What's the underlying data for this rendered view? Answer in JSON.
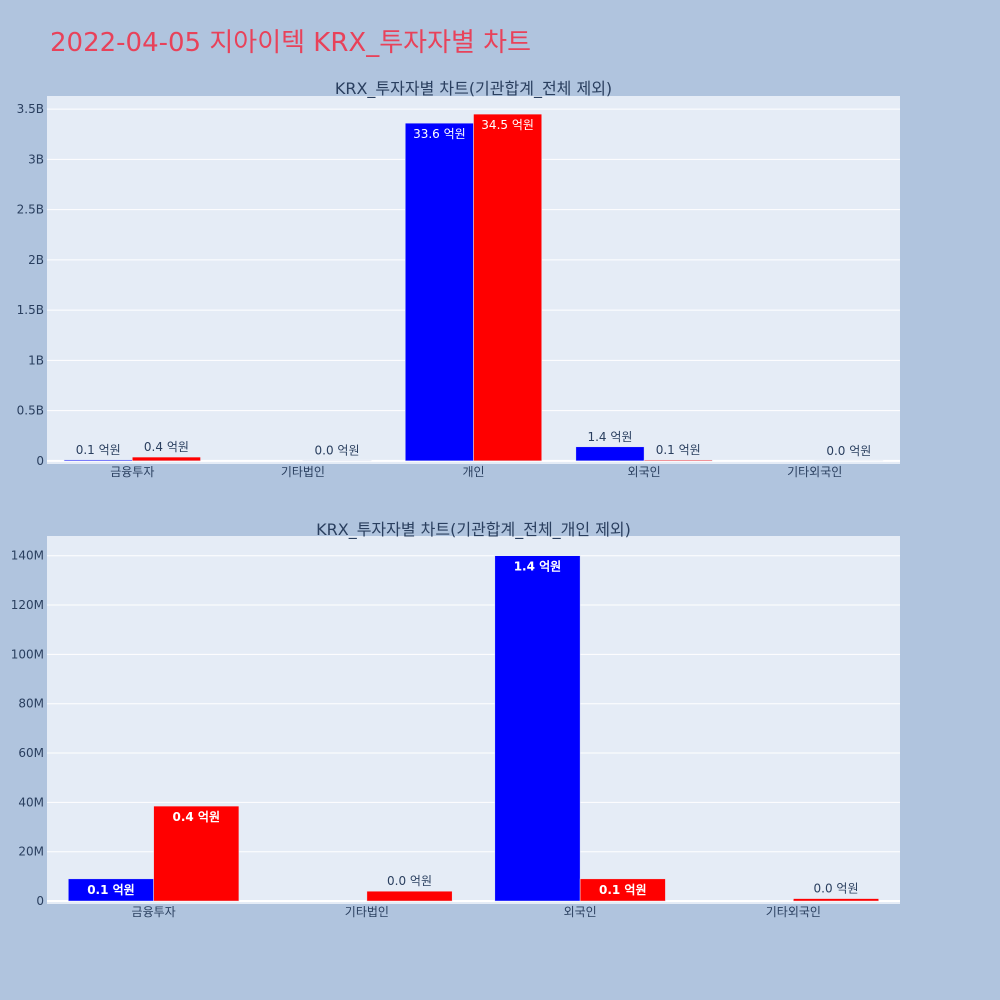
{
  "page_title": "2022-04-05 지아이텍 KRX_투자자별 차트",
  "chart_data": [
    {
      "type": "bar",
      "title": "KRX_투자자별 차트(기관합계_전체 제외)",
      "categories": [
        "금융투자",
        "기타법인",
        "개인",
        "외국인",
        "기타외국인"
      ],
      "series": [
        {
          "color": "#0000ff",
          "values": [
            10000000,
            0,
            3360000000,
            140000000,
            0
          ],
          "labels": [
            "0.1 억원",
            "",
            "33.6 억원",
            "1.4 억원",
            ""
          ]
        },
        {
          "color": "#ff0000",
          "values": [
            38000000,
            4000000,
            3450000000,
            9000000,
            1000000
          ],
          "labels": [
            "0.4 억원",
            "0.0 억원",
            "34.5 억원",
            "0.1 억원",
            "0.0 억원"
          ]
        }
      ],
      "yticks": [
        {
          "v": 0,
          "t": "0"
        },
        {
          "v": 500000000,
          "t": "0.5B"
        },
        {
          "v": 1000000000,
          "t": "1B"
        },
        {
          "v": 1500000000,
          "t": "1.5B"
        },
        {
          "v": 2000000000,
          "t": "2B"
        },
        {
          "v": 2500000000,
          "t": "2.5B"
        },
        {
          "v": 3000000000,
          "t": "3B"
        },
        {
          "v": 3500000000,
          "t": "3.5B"
        }
      ],
      "ylim": [
        -31000000,
        3630000000
      ],
      "grid": true
    },
    {
      "type": "bar",
      "title": "KRX_투자자별 차트(기관합계_전체_개인 제외)",
      "categories": [
        "금융투자",
        "기타법인",
        "외국인",
        "기타외국인"
      ],
      "series": [
        {
          "color": "#0000ff",
          "values": [
            9000000,
            0,
            140000000,
            0
          ],
          "labels": [
            "0.1 억원",
            "",
            "1.4 억원",
            ""
          ]
        },
        {
          "color": "#ff0000",
          "values": [
            38500000,
            4000000,
            9000000,
            1000000
          ],
          "labels": [
            "0.4 억원",
            "0.0 억원",
            "0.1 억원",
            "0.0 억원"
          ]
        }
      ],
      "yticks": [
        {
          "v": 0,
          "t": "0"
        },
        {
          "v": 20000000,
          "t": "20M"
        },
        {
          "v": 40000000,
          "t": "40M"
        },
        {
          "v": 60000000,
          "t": "60M"
        },
        {
          "v": 80000000,
          "t": "80M"
        },
        {
          "v": 100000000,
          "t": "100M"
        },
        {
          "v": 120000000,
          "t": "120M"
        },
        {
          "v": 140000000,
          "t": "140M"
        }
      ],
      "ylim": [
        -1200000,
        148000000
      ],
      "grid": true
    }
  ]
}
